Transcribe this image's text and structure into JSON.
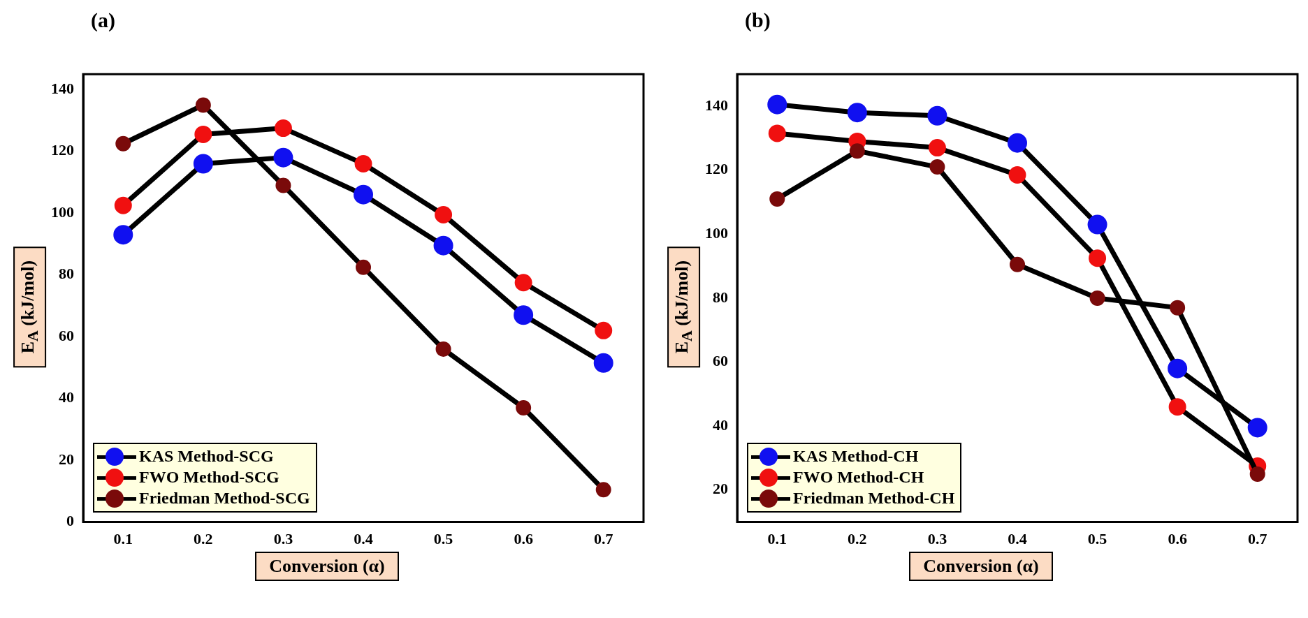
{
  "chart_data": [
    {
      "type": "line",
      "title": "(a)",
      "xlabel": "Conversion (α)",
      "ylabel": "E$_{A}$ (kJ/mol)",
      "x": [
        0.1,
        0.2,
        0.3,
        0.4,
        0.5,
        0.6,
        0.7
      ],
      "series": [
        {
          "name": "KAS Method-SCG",
          "color": "#1010f0",
          "values": [
            93,
            116,
            118,
            106,
            89.5,
            67,
            51.5
          ]
        },
        {
          "name": "FWO Method-SCG",
          "color": "#f01010",
          "values": [
            102.5,
            125.5,
            127.5,
            116,
            99.5,
            77.5,
            62
          ]
        },
        {
          "name": "Friedman Method-SCG",
          "color": "#7a0a0a",
          "values": [
            122.5,
            135,
            109,
            82.5,
            56,
            37,
            10.5
          ]
        }
      ],
      "xlim": [
        0.05,
        0.75
      ],
      "xticks": [
        0.1,
        0.2,
        0.3,
        0.4,
        0.5,
        0.6,
        0.7
      ],
      "ylim": [
        0,
        145
      ],
      "yticks": [
        0,
        20,
        40,
        60,
        80,
        100,
        120,
        140
      ],
      "grid": false,
      "legend": "bottom left",
      "marker": "circle",
      "line_style": "solid"
    },
    {
      "type": "line",
      "title": "(b)",
      "xlabel": "Conversion (α)",
      "ylabel": "E$_{A}$ (kJ/mol)",
      "x": [
        0.1,
        0.2,
        0.3,
        0.4,
        0.5,
        0.6,
        0.7
      ],
      "series": [
        {
          "name": "KAS Method-CH",
          "color": "#1010f0",
          "values": [
            140.5,
            138,
            137,
            128.5,
            103,
            58,
            39.5
          ]
        },
        {
          "name": "FWO Method-CH",
          "color": "#f01010",
          "values": [
            131.5,
            129,
            127,
            118.5,
            92.5,
            46,
            27.5
          ]
        },
        {
          "name": "Friedman Method-CH",
          "color": "#7a0a0a",
          "values": [
            111,
            126,
            121,
            90.5,
            80,
            77,
            25
          ]
        }
      ],
      "xlim": [
        0.05,
        0.75
      ],
      "xticks": [
        0.1,
        0.2,
        0.3,
        0.4,
        0.5,
        0.6,
        0.7
      ],
      "ylim": [
        10,
        150
      ],
      "yticks": [
        20,
        40,
        60,
        80,
        100,
        120,
        140
      ],
      "grid": false,
      "legend": "bottom left",
      "marker": "circle",
      "line_style": "solid"
    }
  ]
}
